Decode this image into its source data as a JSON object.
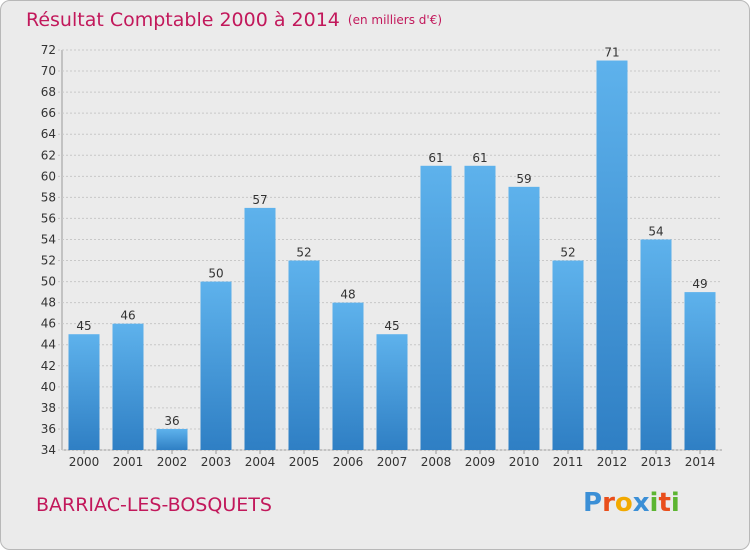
{
  "chart_data": {
    "type": "bar",
    "title": "Résultat Comptable 2000 à 2014",
    "subtitle": "(en milliers d'€)",
    "location": "BARRIAC-LES-BOSQUETS",
    "categories": [
      "2000",
      "2001",
      "2002",
      "2003",
      "2004",
      "2005",
      "2006",
      "2007",
      "2008",
      "2009",
      "2010",
      "2011",
      "2012",
      "2013",
      "2014"
    ],
    "values": [
      45,
      46,
      36,
      50,
      57,
      52,
      48,
      45,
      61,
      61,
      59,
      52,
      71,
      54,
      49
    ],
    "ylim": [
      34,
      72
    ],
    "yticks": [
      34,
      36,
      38,
      40,
      42,
      44,
      46,
      48,
      50,
      52,
      54,
      56,
      58,
      60,
      62,
      64,
      66,
      68,
      70,
      72
    ],
    "grid": true,
    "bar_color": "#4a9fe0"
  },
  "logo": {
    "letters": [
      "P",
      "r",
      "o",
      "x",
      "i",
      "t",
      "i"
    ],
    "colors": [
      "#3b8fd6",
      "#e94e1b",
      "#f2a900",
      "#3b8fd6",
      "#5cb531",
      "#e94e1b",
      "#5cb531"
    ]
  }
}
